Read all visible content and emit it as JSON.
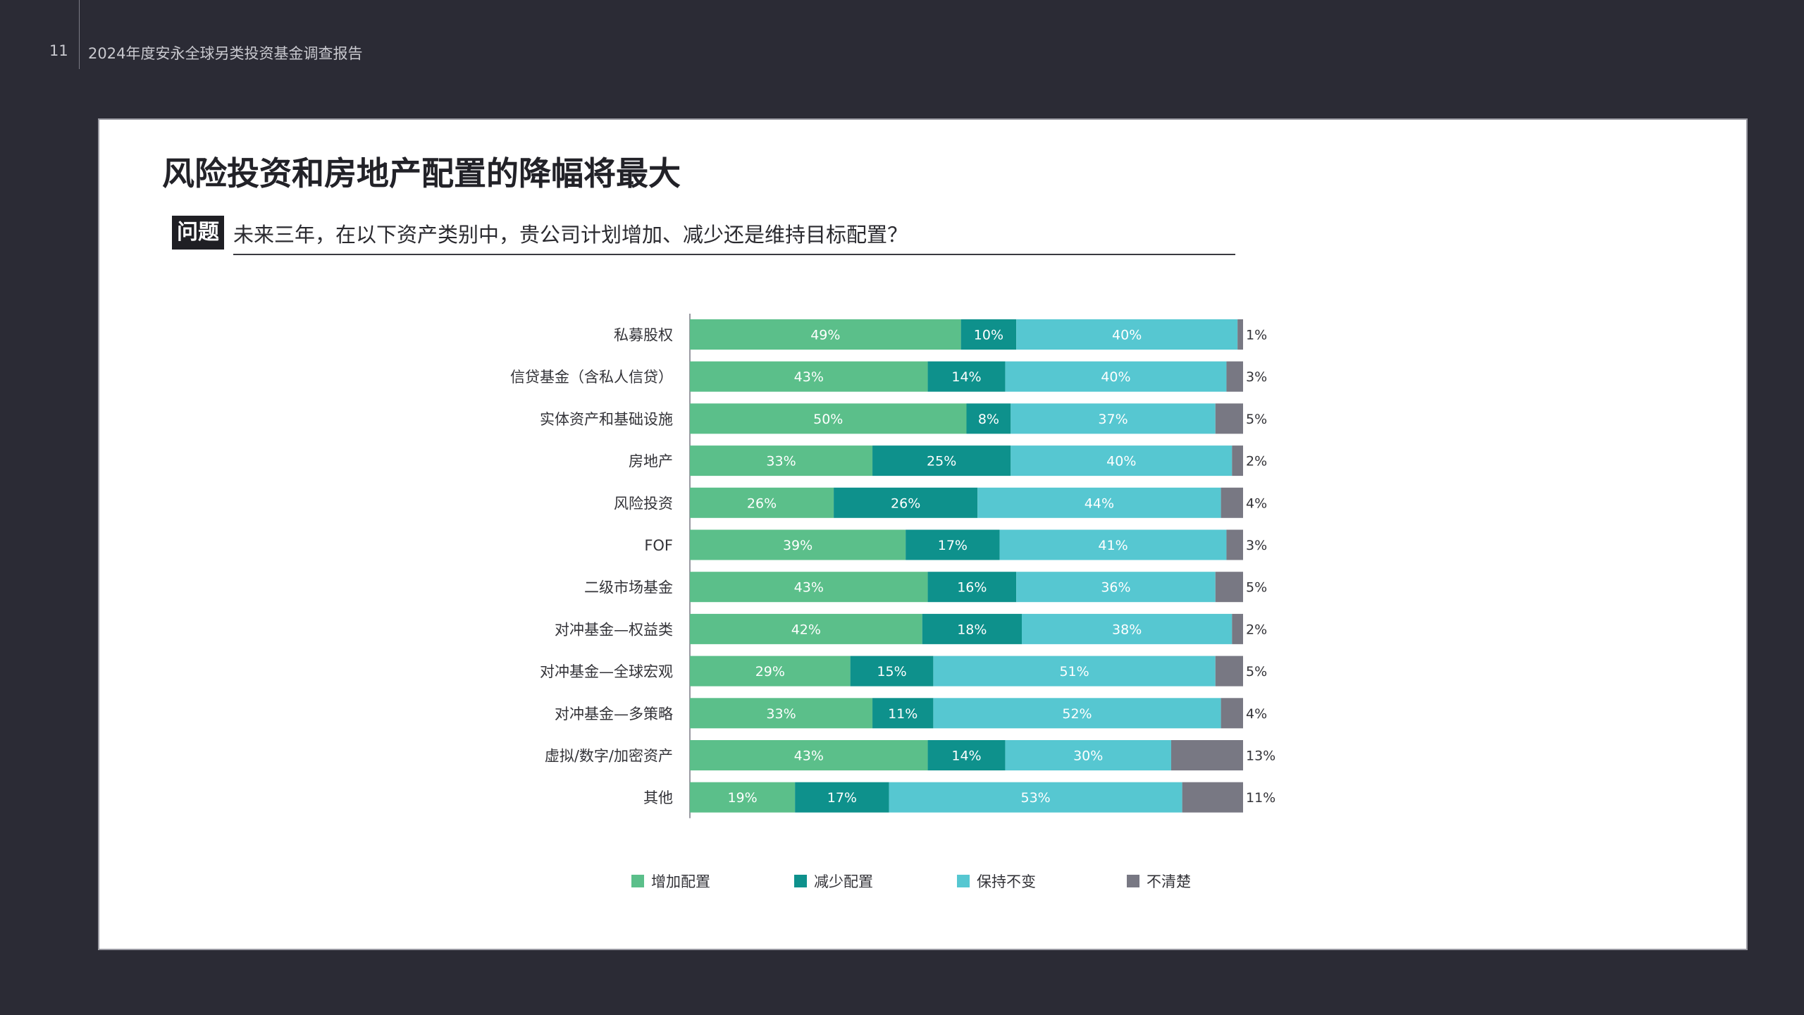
{
  "header": {
    "page_number": "11",
    "report_title": "2024年度安永全球另类投资基金调查报告"
  },
  "slide": {
    "title": "风险投资和房地产配置的降幅将最大",
    "question_badge": "问题",
    "question_text": "未来三年，在以下资产类别中，贵公司计划增加、减少还是维持目标配置？"
  },
  "chart_data": {
    "type": "bar",
    "orientation": "horizontal",
    "stacked": true,
    "percent_scale": true,
    "categories": [
      "私募股权",
      "信贷基金（含私人信贷）",
      "实体资产和基础设施",
      "房地产",
      "风险投资",
      "FOF",
      "二级市场基金",
      "对冲基金—权益类",
      "对冲基金—全球宏观",
      "对冲基金—多策略",
      "虚拟/数字/加密资产",
      "其他"
    ],
    "series": [
      {
        "name": "增加配置",
        "color": "#5bbf8a",
        "values": [
          49,
          43,
          50,
          33,
          26,
          39,
          43,
          42,
          29,
          33,
          43,
          19
        ]
      },
      {
        "name": "减少配置",
        "color": "#0e918c",
        "values": [
          10,
          14,
          8,
          25,
          26,
          17,
          16,
          18,
          15,
          11,
          14,
          17
        ]
      },
      {
        "name": "保持不变",
        "color": "#56c7d1",
        "values": [
          40,
          40,
          37,
          40,
          44,
          41,
          36,
          38,
          51,
          52,
          30,
          53
        ]
      },
      {
        "name": "不清楚",
        "color": "#787883",
        "values": [
          1,
          3,
          5,
          2,
          4,
          3,
          5,
          2,
          5,
          4,
          13,
          11
        ]
      }
    ],
    "value_suffix": "%",
    "legend_position": "bottom",
    "grid": false
  }
}
